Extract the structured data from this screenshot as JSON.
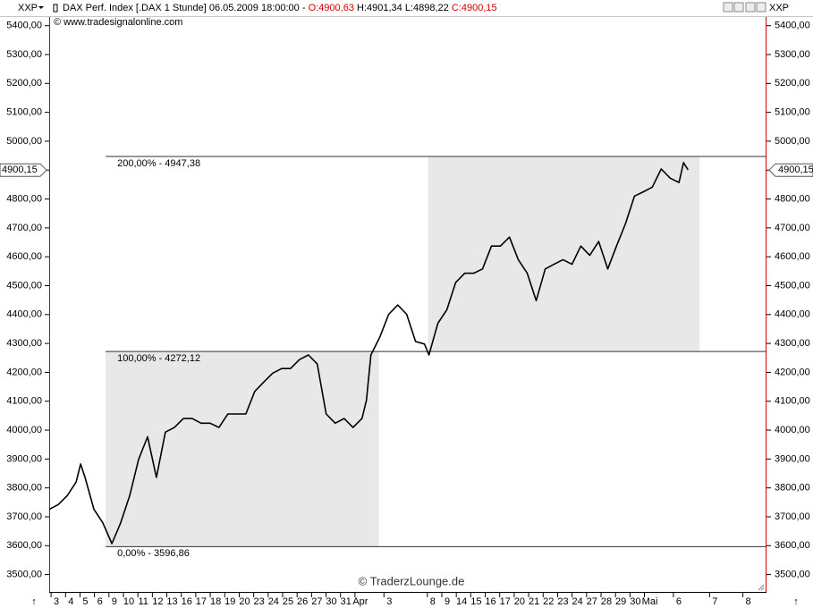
{
  "header": {
    "symbol": "XXP",
    "title": "DAX Perf. Index [.DAX  1 Stunde] 06.05.2009 18:00:00 -",
    "open": "O:4900,63",
    "high": "H:4901,34",
    "low": "L:4898,22",
    "close": "C:4900,15",
    "copyright": "© www.tradesignalonline.com"
  },
  "chart_data": {
    "type": "line",
    "watermark": "© TraderzLounge.de",
    "xlim": [
      -0.5,
      49
    ],
    "ylim": [
      3440,
      5430
    ],
    "xticks": [
      {
        "value": 0,
        "label": "3"
      },
      {
        "value": 1,
        "label": "4"
      },
      {
        "value": 2,
        "label": "5"
      },
      {
        "value": 3,
        "label": "6"
      },
      {
        "value": 4,
        "label": "9"
      },
      {
        "value": 5,
        "label": "10"
      },
      {
        "value": 6,
        "label": "11"
      },
      {
        "value": 7,
        "label": "12"
      },
      {
        "value": 8,
        "label": "13"
      },
      {
        "value": 9,
        "label": "16"
      },
      {
        "value": 10,
        "label": "17"
      },
      {
        "value": 11,
        "label": "18"
      },
      {
        "value": 12,
        "label": "19"
      },
      {
        "value": 13,
        "label": "20"
      },
      {
        "value": 14,
        "label": "23"
      },
      {
        "value": 15,
        "label": "24"
      },
      {
        "value": 16,
        "label": "25"
      },
      {
        "value": 17,
        "label": "26"
      },
      {
        "value": 18,
        "label": "27"
      },
      {
        "value": 19,
        "label": "30"
      },
      {
        "value": 20,
        "label": "31"
      },
      {
        "value": 21,
        "label": "Apr"
      },
      {
        "value": 23,
        "label": "3"
      },
      {
        "value": 26,
        "label": "8"
      },
      {
        "value": 27,
        "label": "9"
      },
      {
        "value": 28,
        "label": "14"
      },
      {
        "value": 29,
        "label": "15"
      },
      {
        "value": 30,
        "label": "16"
      },
      {
        "value": 31,
        "label": "17"
      },
      {
        "value": 32,
        "label": "20"
      },
      {
        "value": 33,
        "label": "21"
      },
      {
        "value": 34,
        "label": "22"
      },
      {
        "value": 35,
        "label": "23"
      },
      {
        "value": 36,
        "label": "24"
      },
      {
        "value": 37,
        "label": "27"
      },
      {
        "value": 38,
        "label": "28"
      },
      {
        "value": 39,
        "label": "29"
      },
      {
        "value": 40,
        "label": "30"
      },
      {
        "value": 41,
        "label": "Mai"
      },
      {
        "value": 43,
        "label": "6"
      },
      {
        "value": 45.5,
        "label": "7"
      },
      {
        "value": 47.8,
        "label": "8"
      }
    ],
    "yticks": [
      {
        "value": 3500,
        "label": "3500,00"
      },
      {
        "value": 3600,
        "label": "3600,00"
      },
      {
        "value": 3700,
        "label": "3700,00"
      },
      {
        "value": 3800,
        "label": "3800,00"
      },
      {
        "value": 3900,
        "label": "3900,00"
      },
      {
        "value": 4000,
        "label": "4000,00"
      },
      {
        "value": 4100,
        "label": "4100,00"
      },
      {
        "value": 4200,
        "label": "4200,00"
      },
      {
        "value": 4300,
        "label": "4300,00"
      },
      {
        "value": 4400,
        "label": "4400,00"
      },
      {
        "value": 4500,
        "label": "4500,00"
      },
      {
        "value": 4600,
        "label": "4600,00"
      },
      {
        "value": 4700,
        "label": "4700,00"
      },
      {
        "value": 4800,
        "label": "4800,00"
      },
      {
        "value": 4900,
        "label": "4900,00"
      },
      {
        "value": 5000,
        "label": "5000,00"
      },
      {
        "value": 5100,
        "label": "5100,00"
      },
      {
        "value": 5200,
        "label": "5200,00"
      },
      {
        "value": 5300,
        "label": "5300,00"
      },
      {
        "value": 5400,
        "label": "5400,00"
      }
    ],
    "last_price": {
      "value": 4900.15,
      "label": "4900,15"
    },
    "fib_levels": [
      {
        "value": 3596.86,
        "label": "0,00% - 3596,86"
      },
      {
        "value": 4272.12,
        "label": "100,00% - 4272,12"
      },
      {
        "value": 4947.38,
        "label": "200,00% - 4947,38"
      }
    ],
    "fib_zones": [
      {
        "from": 3.4,
        "to": 22.28,
        "low": 3596.86,
        "high": 4272.12
      },
      {
        "from": 25.68,
        "to": 44.44,
        "low": 4272.12,
        "high": 4947.38
      }
    ],
    "series": [
      {
        "color": "#000000",
        "x": [
          -0.49,
          0.12,
          0.74,
          1.36,
          1.67,
          1.98,
          2.59,
          3.21,
          3.83,
          4.44,
          5.06,
          5.68,
          6.3,
          6.91,
          7.53,
          8.15,
          8.77,
          9.38,
          10.0,
          10.62,
          11.23,
          11.85,
          12.47,
          13.09,
          13.7,
          14.32,
          14.94,
          15.56,
          16.17,
          16.79,
          17.41,
          18.02,
          18.64,
          19.26,
          19.88,
          20.49,
          21.11,
          21.42,
          21.73,
          22.35,
          22.96,
          23.58,
          24.2,
          24.81,
          25.43,
          25.74,
          26.36,
          26.98,
          27.59,
          28.21,
          28.83,
          29.44,
          30.06,
          30.68,
          31.3,
          31.91,
          32.53,
          33.15,
          33.77,
          34.38,
          35.0,
          35.62,
          36.23,
          36.85,
          37.47,
          38.09,
          38.7,
          39.32,
          39.94,
          40.56,
          41.17,
          41.79,
          42.41,
          43.02,
          43.33,
          43.64
        ],
        "values": [
          3726,
          3742,
          3773,
          3820,
          3883,
          3836,
          3726,
          3679,
          3607,
          3679,
          3773,
          3899,
          3977,
          3836,
          3993,
          4009,
          4040,
          4040,
          4024,
          4024,
          4009,
          4056,
          4056,
          4056,
          4134,
          4166,
          4197,
          4213,
          4213,
          4244,
          4260,
          4229,
          4056,
          4024,
          4040,
          4009,
          4040,
          4103,
          4260,
          4323,
          4401,
          4433,
          4401,
          4307,
          4298,
          4260,
          4370,
          4417,
          4511,
          4543,
          4543,
          4558,
          4637,
          4637,
          4668,
          4590,
          4543,
          4448,
          4558,
          4574,
          4590,
          4574,
          4637,
          4605,
          4653,
          4558,
          4637,
          4715,
          4810,
          4825,
          4841,
          4904,
          4872,
          4857,
          4926,
          4901
        ]
      }
    ]
  }
}
